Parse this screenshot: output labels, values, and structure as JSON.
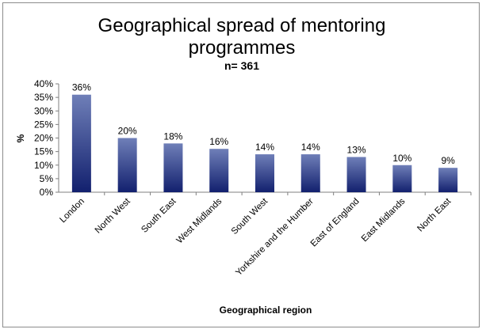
{
  "chart_data": {
    "type": "bar",
    "title_line1": "Geographical spread of mentoring",
    "title_line2": "programmes",
    "subtitle": "n= 361",
    "xlabel": "Geographical region",
    "ylabel": "%",
    "ylim": [
      0,
      40
    ],
    "ytick_step": 5,
    "ytick_labels": [
      "0%",
      "5%",
      "10%",
      "15%",
      "20%",
      "25%",
      "30%",
      "35%",
      "40%"
    ],
    "grid": false,
    "legend": "none",
    "categories": [
      "London",
      "North West",
      "South East",
      "West Midlands",
      "South West",
      "Yorkshire and the Humber",
      "East of England",
      "East Midlands",
      "North East"
    ],
    "values": [
      36,
      20,
      18,
      16,
      14,
      14,
      13,
      10,
      9
    ],
    "data_labels": [
      "36%",
      "20%",
      "18%",
      "16%",
      "14%",
      "14%",
      "13%",
      "10%",
      "9%"
    ],
    "bar_color_top": "#6f7fb8",
    "bar_color_bottom": "#12206e"
  }
}
